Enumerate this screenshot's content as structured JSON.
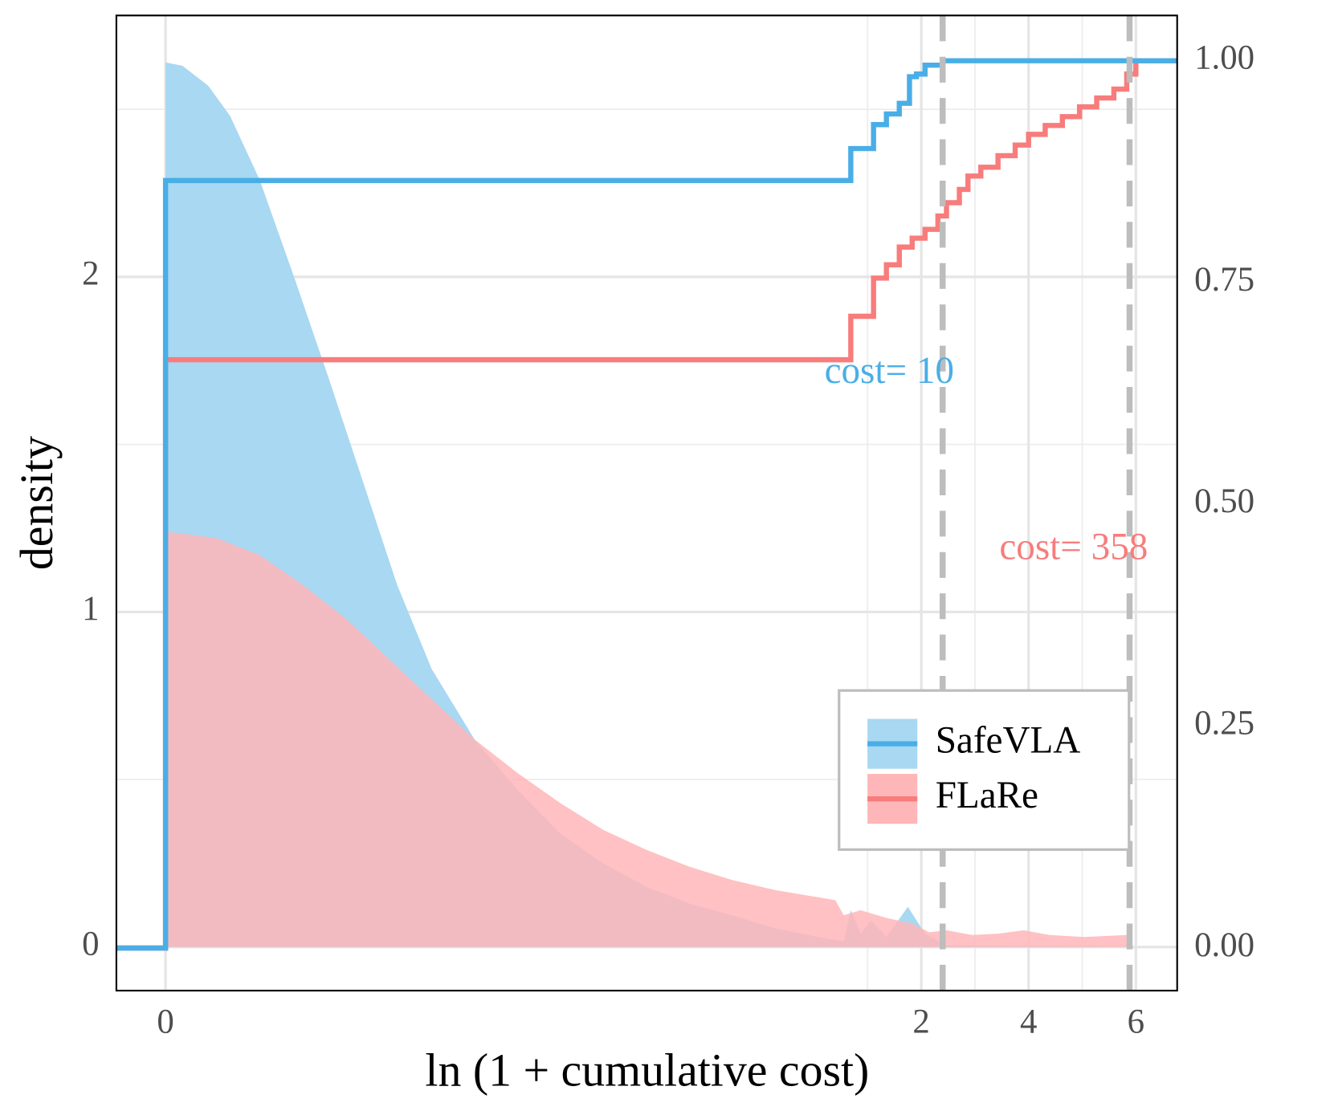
{
  "chart_data": {
    "type": "density_ecdf",
    "x_label": "ln (1 + cumulative cost)",
    "y_label": "density",
    "xlim": [
      -0.07,
      6.77
    ],
    "xticks": [
      0,
      2,
      4,
      6
    ],
    "x_minor_grid": [
      1,
      3,
      5
    ],
    "ylim": [
      -0.13,
      2.78
    ],
    "yticks": [
      0,
      1,
      2
    ],
    "y_minor_grid": [
      0.5,
      1.5,
      2.5
    ],
    "y2lim": [
      -0.048,
      1.051
    ],
    "y2ticks": [
      {
        "value": 0,
        "label": "0.00"
      },
      {
        "value": 0.25,
        "label": "0.25"
      },
      {
        "value": 0.5,
        "label": "0.50"
      },
      {
        "value": 0.75,
        "label": "0.75"
      },
      {
        "value": 1,
        "label": "1.00"
      }
    ],
    "grid": true,
    "legend": "lower right",
    "series": [
      {
        "name": "SafeVLA",
        "color": "#4aaee6",
        "fill": "#a8d8f2",
        "density": {
          "x": [
            0,
            0.024,
            0.061,
            0.092,
            0.134,
            0.183,
            0.232,
            0.281,
            0.33,
            0.379,
            0.44,
            0.501,
            0.562,
            0.623,
            0.685,
            0.746,
            0.807,
            0.868,
            0.929,
            0.966,
            0.976,
            0.99,
            1.06,
            1.35,
            1.75,
            2.07,
            2.47,
            5.83
          ],
          "values": [
            2.64,
            2.63,
            2.57,
            2.48,
            2.29,
            2.0,
            1.7,
            1.39,
            1.08,
            0.83,
            0.62,
            0.47,
            0.34,
            0.25,
            0.18,
            0.13,
            0.095,
            0.056,
            0.03,
            0.018,
            0.11,
            0.04,
            0.08,
            0.03,
            0.12,
            0.04,
            0.005,
            0
          ]
        },
        "ecdf": {
          "axis": "y2",
          "x": [
            -0.07,
            0,
            0.976,
            1.11,
            1.35,
            1.59,
            1.78,
            1.91,
            2.07,
            2.39
          ],
          "values": [
            0,
            0.865,
            0.901,
            0.928,
            0.94,
            0.952,
            0.982,
            0.985,
            0.995,
            1.0
          ]
        }
      },
      {
        "name": "FLaRe",
        "color": "#f87c7c",
        "fill": "#ffb6b8",
        "density": {
          "x": [
            0,
            0.073,
            0.134,
            0.196,
            0.257,
            0.318,
            0.379,
            0.44,
            0.501,
            0.562,
            0.623,
            0.685,
            0.746,
            0.807,
            0.868,
            0.954,
            0.966,
            0.99,
            1.35,
            1.83,
            2.15,
            2.47,
            2.95,
            3.43,
            3.91,
            4.39,
            5.03,
            5.83
          ],
          "values": [
            1.24,
            1.22,
            1.17,
            1.08,
            0.98,
            0.86,
            0.74,
            0.62,
            0.52,
            0.43,
            0.35,
            0.29,
            0.24,
            0.2,
            0.17,
            0.14,
            0.095,
            0.11,
            0.087,
            0.07,
            0.044,
            0.05,
            0.036,
            0.04,
            0.05,
            0.036,
            0.03,
            0.036
          ]
        },
        "ecdf": {
          "axis": "y2",
          "x": [
            -0.07,
            0,
            0.976,
            1.11,
            1.35,
            1.59,
            1.83,
            2.07,
            2.31,
            2.47,
            2.71,
            2.87,
            3.11,
            3.43,
            3.75,
            4.0,
            4.31,
            4.63,
            4.95,
            5.27,
            5.59,
            5.83,
            6.0
          ],
          "values": [
            0,
            0.663,
            0.712,
            0.755,
            0.77,
            0.79,
            0.8,
            0.81,
            0.825,
            0.84,
            0.855,
            0.87,
            0.88,
            0.893,
            0.905,
            0.917,
            0.927,
            0.937,
            0.948,
            0.958,
            0.968,
            0.985,
            1.0
          ]
        }
      }
    ],
    "vlines": [
      2.398,
      5.883
    ],
    "annotations": [
      {
        "text": "cost= 10",
        "color": "#4aaee6"
      },
      {
        "text": "cost= 358",
        "color": "#f87c7c"
      }
    ]
  }
}
